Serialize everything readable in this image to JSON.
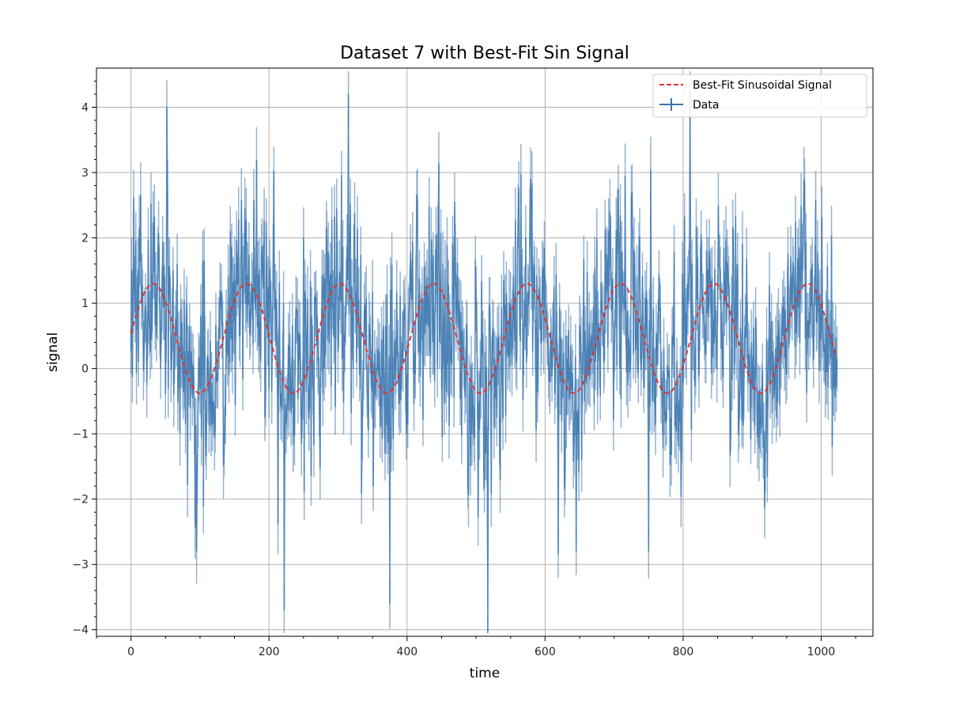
{
  "chart_data": {
    "type": "line",
    "title": "Dataset 7 with Best-Fit Sin Signal",
    "xlabel": "time",
    "ylabel": "signal",
    "xlim": [
      -50,
      1075
    ],
    "ylim": [
      -4.1,
      4.6
    ],
    "x_ticks": [
      0,
      200,
      400,
      600,
      800,
      1000
    ],
    "y_ticks": [
      -4,
      -3,
      -2,
      -1,
      0,
      1,
      2,
      3,
      4
    ],
    "x_tick_labels": [
      "0",
      "200",
      "400",
      "600",
      "800",
      "1000"
    ],
    "y_tick_labels": [
      "−4",
      "−3",
      "−2",
      "−1",
      "0",
      "1",
      "2",
      "3",
      "4"
    ],
    "grid": true,
    "legend_position": "top-right",
    "series": [
      {
        "name": "Best-Fit Sinusoidal Signal",
        "style": "dashed",
        "color": "#e8302b",
        "x_range": [
          0,
          1023
        ],
        "model": {
          "offset": 0.46,
          "amplitude": 0.84,
          "period": 135.5,
          "x_at_first_peak": 32
        }
      },
      {
        "name": "Data",
        "style": "solid",
        "color": "#3a75ae",
        "n_points": 1024,
        "x_range": [
          0,
          1023
        ],
        "noise_std": 0.85,
        "notable_points": [
          {
            "x": 52,
            "y": 4.0
          },
          {
            "x": 315,
            "y": 4.2
          },
          {
            "x": 222,
            "y": -3.7
          },
          {
            "x": 375,
            "y": -3.6
          },
          {
            "x": 95,
            "y": -2.8
          },
          {
            "x": 810,
            "y": 4.2
          },
          {
            "x": 750,
            "y": -2.8
          },
          {
            "x": 645,
            "y": -2.8
          }
        ]
      }
    ]
  }
}
